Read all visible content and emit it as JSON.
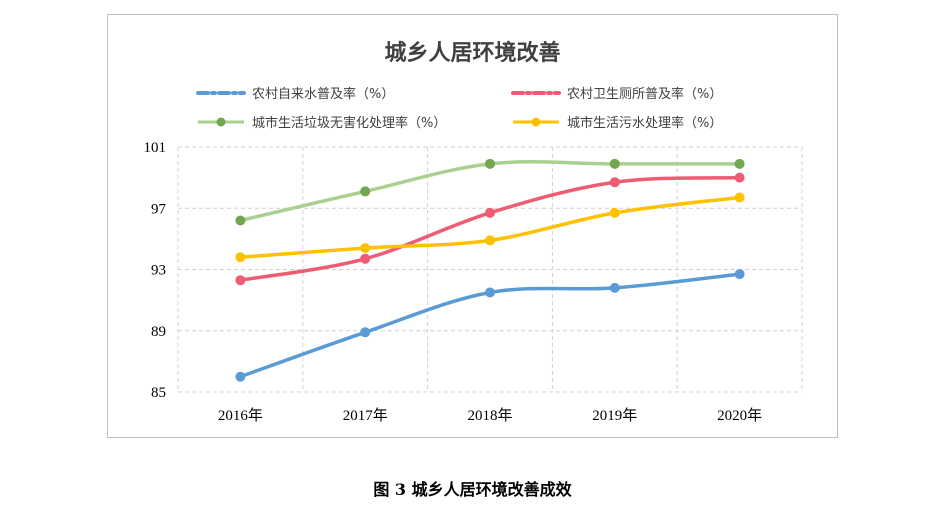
{
  "chart_data": {
    "type": "line",
    "title": "城乡人居环境改善",
    "xlabel": "",
    "ylabel": "",
    "categories": [
      "2016年",
      "2017年",
      "2018年",
      "2019年",
      "2020年"
    ],
    "ylim": [
      85,
      101
    ],
    "yticks": [
      85,
      89,
      93,
      97,
      101
    ],
    "grid": true,
    "legend_position": "top",
    "series": [
      {
        "name": "农村自来水普及率（%）",
        "values": [
          86.0,
          88.9,
          91.5,
          91.8,
          92.7
        ],
        "color": "#5b9bd5",
        "dashed_legend": true
      },
      {
        "name": "农村卫生厕所普及率（%）",
        "values": [
          92.3,
          93.7,
          96.7,
          98.7,
          99.0
        ],
        "color": "#ed5c73",
        "dashed_legend": true
      },
      {
        "name": "城市生活垃圾无害化处理率（%）",
        "values": [
          96.2,
          98.1,
          99.9,
          99.9,
          99.9
        ],
        "color": "#a9d08e",
        "marker": "#70a750",
        "dashed_legend": false
      },
      {
        "name": "城市生活污水处理率（%）",
        "values": [
          93.8,
          94.4,
          94.9,
          96.7,
          97.7
        ],
        "color": "#ffc000",
        "dashed_legend": false
      }
    ]
  },
  "caption": "图 3  城乡人居环境改善成效"
}
